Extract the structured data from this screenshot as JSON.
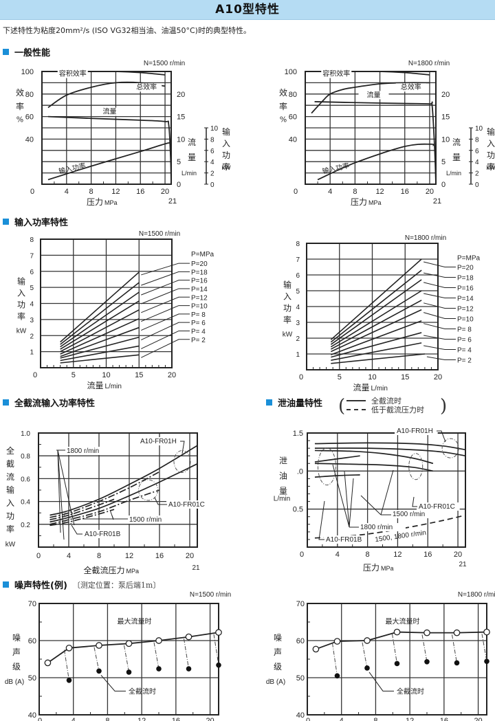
{
  "page": {
    "title": "A10型特性",
    "subtitle": "下述特性为粘度20mm²/s (ISO VG32相当油、油温50°C)时的典型特性。"
  },
  "sections": {
    "general": "一般性能",
    "input_power": "输入功率特性",
    "full_cutoff": "全截流输入功率特性",
    "leakage": "泄油量特性",
    "noise": "噪声特性(例)",
    "noise_note": "〔测定位置：泵后端1m〕"
  },
  "leakage_legend": {
    "solid": "全截流时",
    "dashed": "低于截流压力时"
  },
  "chart_data": [
    {
      "id": "general_1500",
      "type": "line",
      "title": "一般性能",
      "annotation": "N=1500 r/min",
      "xlabel": "压力 MPa",
      "x_ticks": [
        0,
        4,
        8,
        12,
        16,
        20
      ],
      "x_extra_tick": "21",
      "xlim": [
        0,
        21
      ],
      "y_left_label": "效率 %",
      "y_left_ticks": [
        40,
        60,
        80,
        100
      ],
      "y_left_lim": [
        0,
        100
      ],
      "y_right_flow_label": "流量 L/min",
      "y_right_flow_ticks": [
        0,
        5,
        10,
        15,
        20
      ],
      "y_right_power_label": "输入功率 kW",
      "y_right_power_ticks": [
        0,
        2,
        4,
        6,
        8,
        10
      ],
      "series": [
        {
          "name": "容积效率",
          "axis": "eff",
          "x": [
            2,
            8,
            12,
            16,
            20
          ],
          "y": [
            100,
            100,
            100,
            99,
            97
          ]
        },
        {
          "name": "总效率",
          "axis": "eff",
          "x": [
            1,
            4,
            8,
            12,
            16,
            20
          ],
          "y": [
            68,
            79,
            86,
            90,
            90,
            87
          ]
        },
        {
          "name": "流量",
          "axis": "flow",
          "x": [
            1,
            8,
            16,
            20,
            20.6,
            20.9,
            21
          ],
          "y": [
            15,
            14.6,
            14.2,
            13.9,
            13.2,
            6,
            0
          ]
        },
        {
          "name": "输入功率",
          "axis": "power",
          "x": [
            1,
            8,
            16,
            20.5,
            20.9
          ],
          "y": [
            0.8,
            3.2,
            5.8,
            7.3,
            7
          ]
        }
      ]
    },
    {
      "id": "general_1800",
      "type": "line",
      "title": "一般性能",
      "annotation": "N=1800 r/min",
      "xlabel": "压力 MPa",
      "x_ticks": [
        0,
        4,
        8,
        12,
        16,
        20
      ],
      "x_extra_tick": "21",
      "xlim": [
        0,
        21
      ],
      "y_left_label": "效率 %",
      "y_left_ticks": [
        40,
        60,
        80,
        100
      ],
      "y_left_lim": [
        0,
        100
      ],
      "y_right_flow_label": "流量 L/min",
      "y_right_flow_ticks": [
        0,
        5,
        10,
        15,
        20
      ],
      "y_right_power_label": "输入功率 kW",
      "y_right_power_ticks": [
        0,
        2,
        4,
        6,
        8,
        10
      ],
      "series": [
        {
          "name": "容积效率",
          "axis": "eff",
          "x": [
            2,
            8,
            12,
            16,
            20
          ],
          "y": [
            100,
            100,
            100,
            99,
            97
          ]
        },
        {
          "name": "总效率",
          "axis": "eff",
          "x": [
            1,
            3,
            4,
            6,
            8,
            12,
            16,
            20
          ],
          "y": [
            63,
            75,
            80,
            84,
            86,
            89,
            90,
            90
          ]
        },
        {
          "name": "流量",
          "axis": "flow",
          "x": [
            1.5,
            8,
            16,
            20,
            20.4,
            20.8,
            21
          ],
          "y": [
            18.3,
            18.1,
            17.9,
            17.8,
            17.4,
            8,
            0
          ]
        },
        {
          "name": "输入功率",
          "axis": "power",
          "x": [
            2,
            8,
            16,
            20.2,
            20.6
          ],
          "y": [
            0.8,
            3.8,
            6.7,
            7.1,
            6.8
          ]
        }
      ]
    },
    {
      "id": "input_power_1500",
      "type": "line",
      "title": "输入功率特性",
      "annotation": "N=1500 r/min",
      "xlabel": "流量 L/min",
      "ylabel": "输入功率 kW",
      "x_ticks": [
        0,
        5,
        10,
        15,
        20
      ],
      "y_ticks": [
        1,
        2,
        3,
        4,
        5,
        6,
        7,
        8
      ],
      "xlim": [
        0,
        20
      ],
      "ylim": [
        0,
        8
      ],
      "legend_title": "P=MPa",
      "series": [
        {
          "name": "P=20",
          "x": [
            3,
            15
          ],
          "y": [
            1.6,
            5.95
          ]
        },
        {
          "name": "P=18",
          "x": [
            3,
            15
          ],
          "y": [
            1.45,
            5.3
          ]
        },
        {
          "name": "P=16",
          "x": [
            3,
            15
          ],
          "y": [
            1.3,
            4.7
          ]
        },
        {
          "name": "P=14",
          "x": [
            3,
            15
          ],
          "y": [
            1.15,
            4.15
          ]
        },
        {
          "name": "P=12",
          "x": [
            3,
            15
          ],
          "y": [
            1.0,
            3.6
          ]
        },
        {
          "name": "P=10",
          "x": [
            3,
            15
          ],
          "y": [
            0.85,
            3.05
          ]
        },
        {
          "name": "P= 8",
          "x": [
            3,
            15
          ],
          "y": [
            0.7,
            2.5
          ]
        },
        {
          "name": "P= 6",
          "x": [
            3,
            15
          ],
          "y": [
            0.6,
            1.9
          ]
        },
        {
          "name": "P= 4",
          "x": [
            3,
            15
          ],
          "y": [
            0.45,
            1.35
          ]
        },
        {
          "name": "P= 2",
          "x": [
            3,
            15
          ],
          "y": [
            0.3,
            0.8
          ]
        }
      ]
    },
    {
      "id": "input_power_1800",
      "type": "line",
      "title": "输入功率特性",
      "annotation": "N=1800 r/min",
      "xlabel": "流量 L/min",
      "ylabel": "输入功率 kW",
      "x_ticks": [
        0,
        5,
        10,
        15,
        20
      ],
      "y_ticks": [
        1,
        2,
        3,
        4,
        5,
        6,
        7,
        8
      ],
      "xlim": [
        0,
        20
      ],
      "ylim": [
        0,
        8
      ],
      "legend_title": "P=MPa",
      "series": [
        {
          "name": "P=20",
          "x": [
            3.7,
            17.5
          ],
          "y": [
            1.9,
            7.0
          ]
        },
        {
          "name": "P=18",
          "x": [
            3.7,
            17.5
          ],
          "y": [
            1.75,
            6.3
          ]
        },
        {
          "name": "P=16",
          "x": [
            3.7,
            17.5
          ],
          "y": [
            1.6,
            5.7
          ]
        },
        {
          "name": "P=14",
          "x": [
            3.7,
            17.5
          ],
          "y": [
            1.45,
            5.0
          ]
        },
        {
          "name": "P=12",
          "x": [
            3.7,
            17.5
          ],
          "y": [
            1.3,
            4.4
          ]
        },
        {
          "name": "P=10",
          "x": [
            3.7,
            17.5
          ],
          "y": [
            1.15,
            3.8
          ]
        },
        {
          "name": "P= 8",
          "x": [
            3.7,
            17.5
          ],
          "y": [
            0.95,
            3.1
          ]
        },
        {
          "name": "P= 6",
          "x": [
            3.7,
            17.5
          ],
          "y": [
            0.8,
            2.35
          ]
        },
        {
          "name": "P= 4",
          "x": [
            3.7,
            17.5
          ],
          "y": [
            0.6,
            1.7
          ]
        },
        {
          "name": "P= 2",
          "x": [
            3.7,
            18
          ],
          "y": [
            0.4,
            1.0
          ]
        }
      ]
    },
    {
      "id": "full_cutoff_input_power",
      "type": "line",
      "title": "全截流输入功率特性",
      "xlabel": "全截流压力 MPa",
      "ylabel": "全截流输入功率 kW",
      "x_ticks": [
        0,
        4,
        8,
        12,
        16,
        20
      ],
      "x_extra_tick": "21",
      "y_ticks": [
        0.2,
        0.4,
        0.6,
        0.8,
        1.0
      ],
      "xlim": [
        0,
        21
      ],
      "ylim": [
        0,
        1.0
      ],
      "annotations": [
        "1800 r/min",
        "1500 r/min",
        "A10-FR01H",
        "A10-FR01C",
        "A10-FR01B"
      ],
      "series": [
        {
          "name": "1800 r/min A10-FR01H",
          "style": "solid",
          "x": [
            1.5,
            4,
            8,
            12,
            16,
            21
          ],
          "y": [
            0.28,
            0.32,
            0.42,
            0.55,
            0.69,
            0.89
          ]
        },
        {
          "name": "1800 r/min A10-FR01C",
          "style": "dashdot",
          "x": [
            1.5,
            4,
            8,
            12,
            16
          ],
          "y": [
            0.26,
            0.3,
            0.4,
            0.52,
            0.66
          ]
        },
        {
          "name": "1800 r/min A10-FR01B",
          "style": "dashdot",
          "x": [
            1.5,
            4,
            8,
            10
          ],
          "y": [
            0.24,
            0.28,
            0.37,
            0.42
          ]
        },
        {
          "name": "1500 r/min A10-FR01H",
          "style": "solid",
          "x": [
            1.5,
            4,
            8,
            12,
            16,
            21
          ],
          "y": [
            0.22,
            0.26,
            0.34,
            0.45,
            0.57,
            0.73
          ]
        },
        {
          "name": "1500 r/min A10-FR01C",
          "style": "dashdot",
          "x": [
            1.5,
            4,
            8,
            12,
            16
          ],
          "y": [
            0.2,
            0.24,
            0.31,
            0.41,
            0.5
          ]
        },
        {
          "name": "1500 r/min A10-FR01B",
          "style": "dashdot",
          "x": [
            1.5,
            4,
            8,
            10
          ],
          "y": [
            0.19,
            0.22,
            0.29,
            0.33
          ]
        }
      ]
    },
    {
      "id": "leakage",
      "type": "line",
      "title": "泄油量特性",
      "xlabel": "压力 MPa",
      "ylabel": "泄油量 L/min",
      "x_ticks": [
        0,
        4,
        8,
        12,
        16,
        20
      ],
      "x_extra_tick": "21",
      "y_ticks": [
        0.5,
        1.0,
        1.5
      ],
      "y_tick_labels": [
        "0.5",
        ".0",
        "1.5"
      ],
      "xlim": [
        0,
        21
      ],
      "ylim": [
        0,
        1.5
      ],
      "annotations": [
        "A10-FR01H",
        "A10-FR01C",
        "A10-FR01B",
        "1800 r/min",
        "1500 r/min",
        "1500, 1800 r/min"
      ],
      "series": [
        {
          "name": "1800 r/min FR01H",
          "style": "solid",
          "x": [
            1,
            8,
            14,
            18,
            21
          ],
          "y": [
            1.36,
            1.37,
            1.36,
            1.33,
            1.28
          ]
        },
        {
          "name": "1500 r/min FR01H",
          "style": "solid",
          "x": [
            1,
            8,
            14,
            18,
            21
          ],
          "y": [
            1.3,
            1.3,
            1.28,
            1.25,
            1.2
          ]
        },
        {
          "name": "1800 r/min FR01C",
          "style": "solid",
          "x": [
            1,
            6,
            10,
            14,
            16.7
          ],
          "y": [
            1.27,
            1.26,
            1.23,
            1.17,
            1.1
          ]
        },
        {
          "name": "1500 r/min FR01C",
          "style": "solid",
          "x": [
            1,
            6,
            10,
            14,
            16.7
          ],
          "y": [
            1.1,
            1.09,
            1.08,
            1.05,
            1.0
          ]
        },
        {
          "name": "1800 r/min FR01B",
          "style": "solid",
          "x": [
            1,
            4,
            7
          ],
          "y": [
            1.12,
            1.16,
            1.2
          ]
        },
        {
          "name": "1500 r/min FR01B",
          "style": "solid",
          "x": [
            1,
            4,
            7
          ],
          "y": [
            0.92,
            0.94,
            0.95
          ]
        },
        {
          "name": "1500, 1800 r/min (below cutoff)",
          "style": "dashed",
          "x": [
            1,
            6,
            10,
            14,
            18,
            21
          ],
          "y": [
            0.12,
            0.15,
            0.2,
            0.27,
            0.35,
            0.42
          ]
        }
      ]
    },
    {
      "id": "noise_1500",
      "type": "scatter",
      "title": "噪声特性(例)",
      "annotation": "N=1500 r/min",
      "xlabel": "压力 MPa",
      "ylabel": "噪声级 dB (A)",
      "x_ticks": [
        0,
        4,
        8,
        12,
        16,
        20
      ],
      "x_extra_tick": "21",
      "y_ticks": [
        40,
        50,
        60,
        70
      ],
      "xlim": [
        0,
        21
      ],
      "ylim": [
        40,
        70
      ],
      "series": [
        {
          "name": "最大流量时",
          "marker": "open",
          "x": [
            1,
            3.5,
            7,
            10.5,
            14,
            17.5,
            21
          ],
          "y": [
            54,
            58,
            58.7,
            59.2,
            60,
            61,
            62.2
          ]
        },
        {
          "name": "全截流时",
          "marker": "filled",
          "x": [
            3.5,
            7,
            10.5,
            14,
            17.5,
            21
          ],
          "y": [
            49.3,
            51.8,
            51.5,
            52.4,
            52.4,
            53.4
          ]
        }
      ]
    },
    {
      "id": "noise_1800",
      "type": "scatter",
      "title": "噪声特性(例)",
      "annotation": "N=1800 r/min",
      "xlabel": "压力 MPa",
      "ylabel": "噪声级 dB (A)",
      "x_ticks": [
        0,
        4,
        8,
        12,
        16,
        20
      ],
      "x_extra_tick": "21",
      "y_ticks": [
        40,
        50,
        60,
        70
      ],
      "xlim": [
        0,
        21
      ],
      "ylim": [
        40,
        70
      ],
      "series": [
        {
          "name": "最大流量时",
          "marker": "open",
          "x": [
            1,
            3.5,
            7,
            10.5,
            14,
            17.5,
            21
          ],
          "y": [
            57.7,
            59.8,
            60,
            62.3,
            62.1,
            62.1,
            62.3
          ]
        },
        {
          "name": "全截流时",
          "marker": "filled",
          "x": [
            3.5,
            7,
            10.5,
            14,
            17.5,
            21
          ],
          "y": [
            50.5,
            52.6,
            53.8,
            54.3,
            54,
            54.4
          ]
        }
      ]
    }
  ]
}
